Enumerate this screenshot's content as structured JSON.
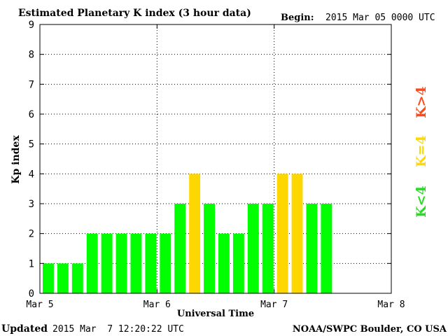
{
  "header": {
    "title": "Estimated Planetary K index (3 hour data)",
    "begin_label": "Begin:",
    "begin_value": "2015 Mar 05 0000 UTC"
  },
  "footer": {
    "updated_label": "Updated",
    "updated_value": "2015 Mar  7 12:20:22 UTC",
    "source": "NOAA/SWPC Boulder, CO USA"
  },
  "legend": [
    {
      "label": "K<4",
      "color": "#22e01d"
    },
    {
      "label": "K=4",
      "color": "#ffd800"
    },
    {
      "label": "K>4",
      "color": "#ff4a18"
    }
  ],
  "colors": {
    "below4": "#00ff00",
    "equal4": "#ffd700",
    "above4": "#ff3300",
    "axis": "#000000",
    "grid": "#000000"
  },
  "chart_data": {
    "type": "bar",
    "title": "Estimated Planetary K index (3 hour data)",
    "xlabel": "Universal Time",
    "ylabel": "Kp index",
    "ylim": [
      0,
      9
    ],
    "yticks": [
      "0",
      "1",
      "2",
      "3",
      "4",
      "5",
      "6",
      "7",
      "8",
      "9"
    ],
    "xticks": [
      "Mar 5",
      "Mar 6",
      "Mar 7",
      "Mar 8"
    ],
    "slots_total": 24,
    "grid": true,
    "values": [
      1,
      1,
      1,
      2,
      2,
      2,
      2,
      2,
      2,
      3,
      4,
      3,
      2,
      2,
      3,
      3,
      4,
      4,
      3,
      3
    ]
  }
}
